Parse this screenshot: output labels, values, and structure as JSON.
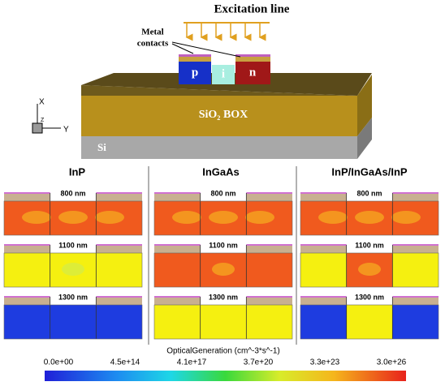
{
  "figure": {
    "excitation_label": "Excitation line",
    "contacts_label": [
      "Metal",
      "contacts"
    ],
    "regions": [
      "p",
      "i",
      "n"
    ],
    "box_label": "SiO₂ BOX",
    "substrate_label": "Si",
    "axes": [
      "X",
      "Z",
      "Y"
    ],
    "columns": [
      {
        "title": "InP",
        "panels": [
          {
            "label": "800 nm"
          },
          {
            "label": "1100 nm"
          },
          {
            "label": "1300 nm"
          }
        ]
      },
      {
        "title": "InGaAs",
        "panels": [
          {
            "label": "800 nm"
          },
          {
            "label": "1100 nm"
          },
          {
            "label": "1300 nm"
          }
        ]
      },
      {
        "title": "InP/InGaAs/InP",
        "panels": [
          {
            "label": "800 nm"
          },
          {
            "label": "1100 nm"
          },
          {
            "label": "1300 nm"
          }
        ]
      }
    ],
    "colorbar": {
      "title": "OpticalGeneration (cm^-3*s^-1)",
      "tick_labels": [
        "0.0e+00",
        "4.5e+14",
        "4.1e+17",
        "3.7e+20",
        "3.3e+23",
        "3.0e+26"
      ]
    }
  }
}
